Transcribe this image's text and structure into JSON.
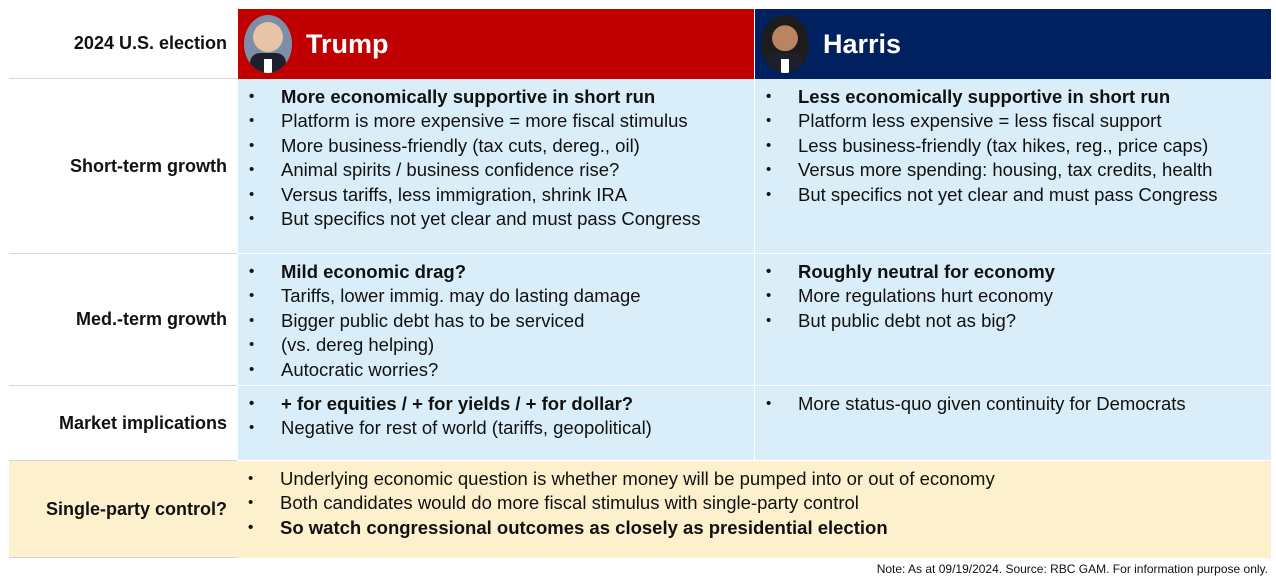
{
  "header": {
    "label": "2024 U.S. election",
    "trump": {
      "name": "Trump",
      "color": "#c00000"
    },
    "harris": {
      "name": "Harris",
      "color": "#002060"
    }
  },
  "rows": {
    "short_term": {
      "label": "Short-term growth",
      "trump": [
        "More economically supportive in short run",
        "Platform is more expensive = more fiscal stimulus",
        "More business-friendly (tax cuts, dereg., oil)",
        "Animal spirits / business confidence rise?",
        "Versus tariffs, less immigration, shrink IRA",
        "But specifics not yet clear and must pass Congress"
      ],
      "harris": [
        "Less economically supportive in short run",
        "Platform less expensive = less fiscal support",
        "Less business-friendly (tax hikes, reg., price caps)",
        "Versus more spending: housing, tax credits, health",
        "But specifics not yet clear and must pass Congress"
      ]
    },
    "med_term": {
      "label": "Med.-term growth",
      "trump": [
        "Mild economic drag?",
        "Tariffs, lower immig. may do lasting damage",
        "Bigger public debt has to be serviced",
        "(vs. dereg helping)",
        "Autocratic worries?"
      ],
      "harris": [
        "Roughly neutral for economy",
        "More regulations hurt economy",
        "But public debt not as big?"
      ]
    },
    "market": {
      "label": "Market implications",
      "trump": [
        "+ for equities / + for yields / + for dollar?",
        "Negative for rest of world (tariffs, geopolitical)"
      ],
      "harris": [
        "More status-quo given continuity for Democrats"
      ]
    },
    "single_party": {
      "label": "Single-party control?",
      "items": [
        "Underlying economic question is whether money will be pumped into or out of economy",
        "Both candidates would do more fiscal stimulus with single-party control",
        "So watch congressional outcomes as closely as presidential election"
      ]
    }
  },
  "note": "Note: As at 09/19/2024. Source: RBC GAM. For information purpose only.",
  "colors": {
    "blue_body": "#d9eef8",
    "yellow_body": "#fdf0cc"
  }
}
